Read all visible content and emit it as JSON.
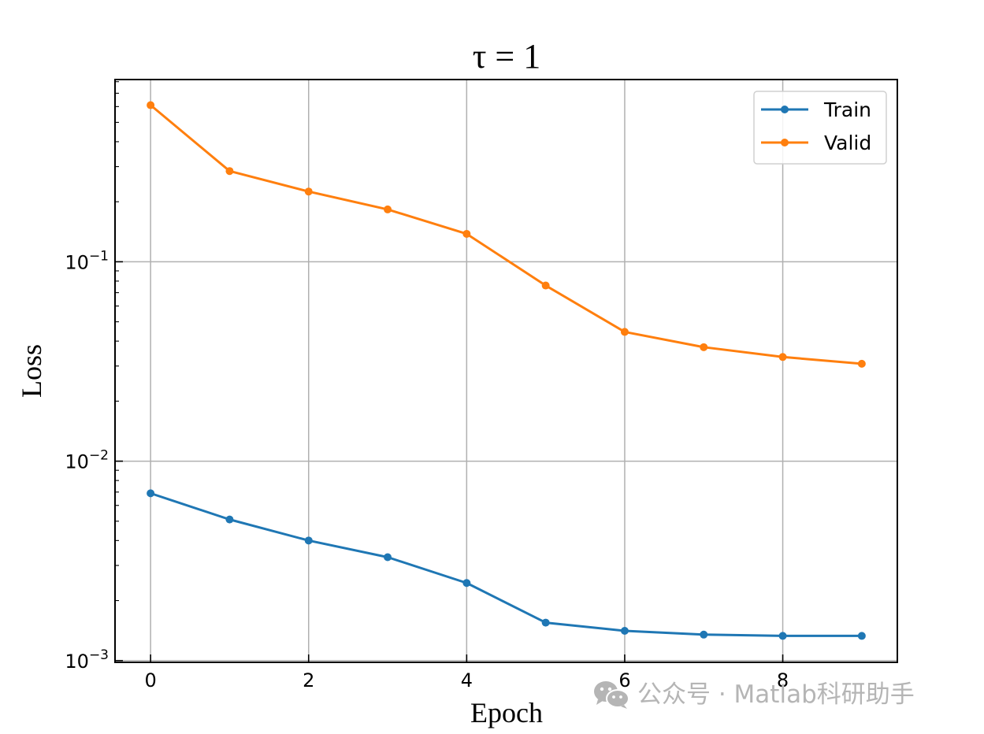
{
  "chart_data": {
    "type": "line",
    "title": "τ = 1",
    "xlabel": "Epoch",
    "ylabel": "Loss",
    "x": [
      0,
      1,
      2,
      3,
      4,
      5,
      6,
      7,
      8,
      9
    ],
    "xlim": [
      -0.45,
      9.45
    ],
    "ylim": [
      0.00098,
      0.82
    ],
    "yscale": "log",
    "x_ticks": [
      0,
      2,
      4,
      6,
      8
    ],
    "x_tick_labels": [
      "0",
      "2",
      "4",
      "6",
      "8"
    ],
    "y_ticks": [
      0.001,
      0.01,
      0.1
    ],
    "y_tick_labels": [
      {
        "base": "10",
        "exp": "−3"
      },
      {
        "base": "10",
        "exp": "−2"
      },
      {
        "base": "10",
        "exp": "−1"
      }
    ],
    "grid": true,
    "legend_position": "top-right",
    "series": [
      {
        "name": "Train",
        "color": "#1f77b4",
        "values": [
          0.0069,
          0.0051,
          0.004,
          0.0033,
          0.00245,
          0.00155,
          0.00141,
          0.00135,
          0.00133,
          0.00133
        ]
      },
      {
        "name": "Valid",
        "color": "#ff7f0e",
        "values": [
          0.61,
          0.285,
          0.225,
          0.183,
          0.138,
          0.076,
          0.0445,
          0.0373,
          0.0333,
          0.0308
        ]
      }
    ]
  },
  "watermark": {
    "text": "公众号 · Matlab科研助手",
    "icon": "wechat-icon"
  }
}
